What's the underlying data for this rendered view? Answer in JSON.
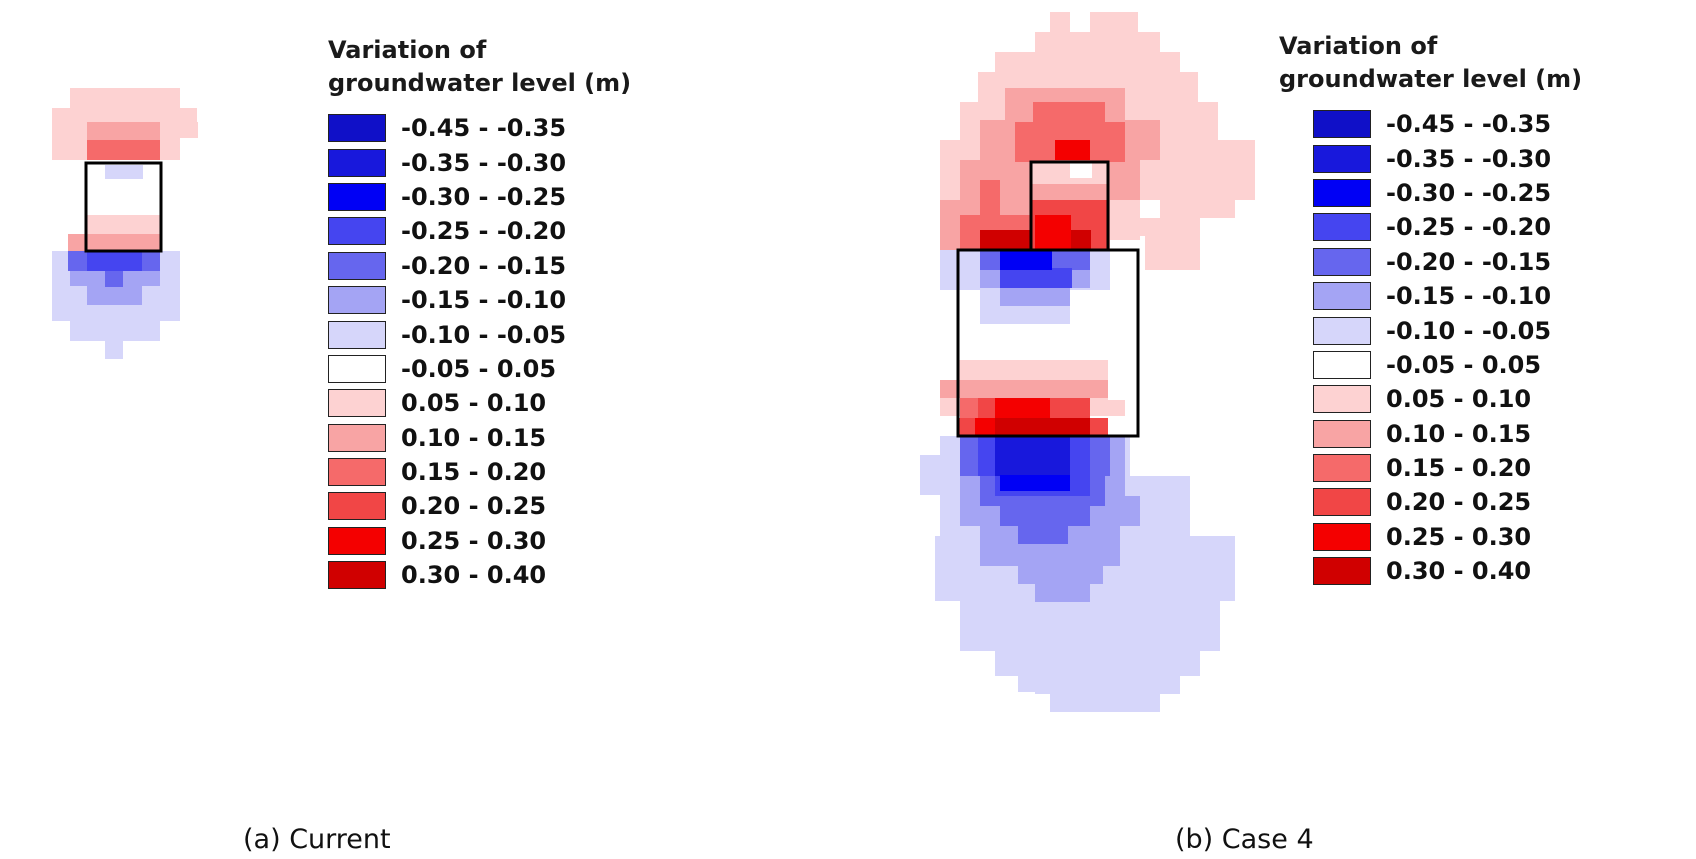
{
  "legend_classes": [
    {
      "range": "-0.45 - -0.35",
      "color": "#1010c8"
    },
    {
      "range": "-0.35 - -0.30",
      "color": "#1818dc"
    },
    {
      "range": "-0.30 - -0.25",
      "color": "#0000f5"
    },
    {
      "range": "-0.25 - -0.20",
      "color": "#4545f0"
    },
    {
      "range": "-0.20 - -0.15",
      "color": "#6666ee"
    },
    {
      "range": "-0.15 - -0.10",
      "color": "#a4a4f4"
    },
    {
      "range": "-0.10 - -0.05",
      "color": "#d6d6fa"
    },
    {
      "range": "-0.05 - 0.05",
      "color": "#ffffff"
    },
    {
      "range": "0.05 - 0.10",
      "color": "#fdd2d2"
    },
    {
      "range": "0.10 - 0.15",
      "color": "#f8a4a4"
    },
    {
      "range": "0.15 - 0.20",
      "color": "#f56a6a"
    },
    {
      "range": "0.20 - 0.25",
      "color": "#f14646"
    },
    {
      "range": "0.25 - 0.30",
      "color": "#f40000"
    },
    {
      "range": "0.30 - 0.40",
      "color": "#d00000"
    }
  ],
  "panels": [
    {
      "legend_title_line1": "Variation of",
      "legend_title_line2": "groundwater level (m)",
      "caption": "(a) Current"
    },
    {
      "legend_title_line1": "Variation of",
      "legend_title_line2": "groundwater level (m)",
      "caption": "(b) Case 4"
    }
  ]
}
